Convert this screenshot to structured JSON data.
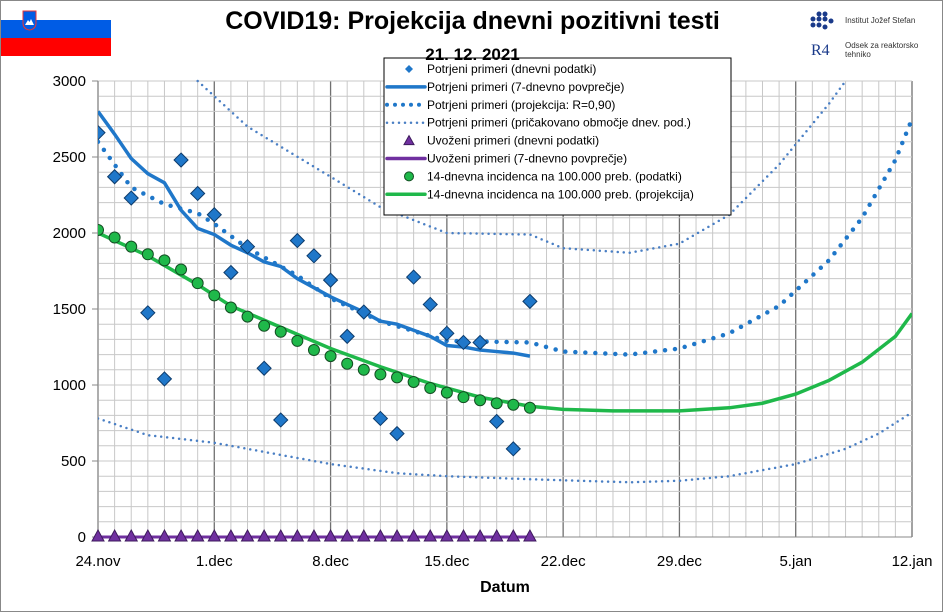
{
  "header": {
    "title": "COVID19: Projekcija dnevni pozitivni testi",
    "subtitle": "21. 12. 2021",
    "logo_line1": "Institut Jožef Stefan",
    "logo_line2": "Odsek za reaktorsko tehniko",
    "logo_mark": "R4"
  },
  "colors": {
    "blue": "#1f77c9",
    "darkblue": "#0b5fae",
    "purple": "#7030a0",
    "green": "#1fb84a",
    "flag_white": "#ffffff",
    "flag_blue": "#005ce5",
    "flag_red": "#ff0000"
  },
  "chart_data": {
    "type": "line",
    "xlabel": "Datum",
    "ylabel": "",
    "xlim": [
      "2021-11-24",
      "2022-01-12"
    ],
    "ylim": [
      0,
      3000
    ],
    "grid": true,
    "legend_position": "top-center",
    "x_ticks": [
      {
        "date": "2021-11-24",
        "label": "24.nov"
      },
      {
        "date": "2021-12-01",
        "label": "1.dec"
      },
      {
        "date": "2021-12-08",
        "label": "8.dec"
      },
      {
        "date": "2021-12-15",
        "label": "15.dec"
      },
      {
        "date": "2021-12-22",
        "label": "22.dec"
      },
      {
        "date": "2021-12-29",
        "label": "29.dec"
      },
      {
        "date": "2022-01-05",
        "label": "5.jan"
      },
      {
        "date": "2022-01-12",
        "label": "12.jan"
      }
    ],
    "y_ticks": [
      "0",
      "500",
      "1000",
      "1500",
      "2000",
      "2500",
      "3000"
    ],
    "dates": [
      "2021-11-24",
      "2021-11-25",
      "2021-11-26",
      "2021-11-27",
      "2021-11-28",
      "2021-11-29",
      "2021-11-30",
      "2021-12-01",
      "2021-12-02",
      "2021-12-03",
      "2021-12-04",
      "2021-12-05",
      "2021-12-06",
      "2021-12-07",
      "2021-12-08",
      "2021-12-09",
      "2021-12-10",
      "2021-12-11",
      "2021-12-12",
      "2021-12-13",
      "2021-12-14",
      "2021-12-15",
      "2021-12-16",
      "2021-12-17",
      "2021-12-18",
      "2021-12-19",
      "2021-12-20"
    ],
    "series": [
      {
        "name": "Potrjeni primeri (dnevni podatki)",
        "style": "diamond",
        "color": "#1f77c9",
        "values": [
          2660,
          2370,
          2230,
          1475,
          1040,
          2480,
          2260,
          2120,
          1740,
          1910,
          1110,
          770,
          1950,
          1850,
          1690,
          1320,
          1480,
          780,
          680,
          1710,
          1530,
          1340,
          1280,
          1280,
          760,
          580,
          1550
        ]
      },
      {
        "name": "Potrjeni primeri (7-dnevno povprečje)",
        "style": "line",
        "color": "#1f77c9",
        "values": [
          2800,
          2650,
          2490,
          2390,
          2330,
          2150,
          2030,
          1990,
          1920,
          1870,
          1810,
          1780,
          1700,
          1640,
          1580,
          1530,
          1480,
          1420,
          1400,
          1360,
          1320,
          1260,
          1250,
          1230,
          1220,
          1210,
          1190
        ]
      },
      {
        "name": "Potrjeni primeri (projekcija: R=0,90)",
        "style": "dots-large",
        "color": "#1f77c9",
        "points": [
          [
            "2021-11-24",
            2600
          ],
          [
            "2021-11-26",
            2300
          ],
          [
            "2021-11-28",
            2190
          ],
          [
            "2021-11-30",
            2130
          ],
          [
            "2021-12-01",
            2060
          ],
          [
            "2021-12-03",
            1900
          ],
          [
            "2021-12-06",
            1720
          ],
          [
            "2021-12-08",
            1570
          ],
          [
            "2021-12-11",
            1420
          ],
          [
            "2021-12-15",
            1290
          ],
          [
            "2021-12-20",
            1280
          ],
          [
            "2021-12-22",
            1220
          ],
          [
            "2021-12-26",
            1200
          ],
          [
            "2021-12-29",
            1240
          ],
          [
            "2022-01-01",
            1340
          ],
          [
            "2022-01-04",
            1520
          ],
          [
            "2022-01-07",
            1820
          ],
          [
            "2022-01-09",
            2100
          ],
          [
            "2022-01-11",
            2480
          ],
          [
            "2022-01-12",
            2750
          ]
        ]
      },
      {
        "name": "Potrjeni primeri (pričakovano območje dnev. pod.)",
        "style": "dots-small",
        "color": "#4a7fc4",
        "points_upper": [
          [
            "2021-11-30",
            3000
          ],
          [
            "2021-12-03",
            2700
          ],
          [
            "2021-12-08",
            2370
          ],
          [
            "2021-12-11",
            2170
          ],
          [
            "2021-12-15",
            2000
          ],
          [
            "2021-12-20",
            1990
          ],
          [
            "2021-12-22",
            1900
          ],
          [
            "2021-12-26",
            1870
          ],
          [
            "2021-12-29",
            1930
          ],
          [
            "2022-01-01",
            2120
          ],
          [
            "2022-01-04",
            2450
          ],
          [
            "2022-01-07",
            2850
          ],
          [
            "2022-01-08",
            3000
          ]
        ],
        "points_lower": [
          [
            "2021-11-24",
            780
          ],
          [
            "2021-11-27",
            670
          ],
          [
            "2021-12-01",
            620
          ],
          [
            "2021-12-04",
            560
          ],
          [
            "2021-12-08",
            480
          ],
          [
            "2021-12-12",
            420
          ],
          [
            "2021-12-15",
            400
          ],
          [
            "2021-12-20",
            380
          ],
          [
            "2021-12-26",
            360
          ],
          [
            "2021-12-29",
            370
          ],
          [
            "2022-01-01",
            400
          ],
          [
            "2022-01-05",
            480
          ],
          [
            "2022-01-08",
            580
          ],
          [
            "2022-01-10",
            680
          ],
          [
            "2022-01-12",
            820
          ]
        ]
      },
      {
        "name": "Uvoženi primeri (dnevni podatki)",
        "style": "triangle",
        "color": "#7030a0",
        "values": [
          0,
          0,
          0,
          0,
          0,
          0,
          0,
          0,
          0,
          0,
          0,
          0,
          0,
          0,
          0,
          0,
          0,
          0,
          0,
          0,
          0,
          0,
          0,
          0,
          0,
          0,
          0
        ]
      },
      {
        "name": "Uvoženi primeri (7-dnevno povprečje)",
        "style": "line",
        "color": "#7030a0",
        "values": [
          0,
          0,
          0,
          0,
          0,
          0,
          0,
          0,
          0,
          0,
          0,
          0,
          0,
          0,
          0,
          0,
          0,
          0,
          0,
          0,
          0,
          0,
          0,
          0,
          0,
          0,
          0
        ]
      },
      {
        "name": "14-dnevna incidenca na 100.000 preb. (podatki)",
        "style": "circle",
        "color": "#1fb84a",
        "values": [
          2020,
          1970,
          1910,
          1860,
          1820,
          1760,
          1670,
          1590,
          1510,
          1450,
          1390,
          1350,
          1290,
          1230,
          1190,
          1140,
          1100,
          1070,
          1050,
          1020,
          980,
          950,
          920,
          900,
          880,
          870,
          850
        ]
      },
      {
        "name": "14-dnevna incidenca na 100.000 preb. (projekcija)",
        "style": "line-thick",
        "color": "#1fb84a",
        "points": [
          [
            "2021-11-24",
            2000
          ],
          [
            "2021-11-27",
            1850
          ],
          [
            "2021-11-30",
            1660
          ],
          [
            "2021-12-02",
            1520
          ],
          [
            "2021-12-05",
            1380
          ],
          [
            "2021-12-08",
            1240
          ],
          [
            "2021-12-11",
            1120
          ],
          [
            "2021-12-14",
            1010
          ],
          [
            "2021-12-17",
            920
          ],
          [
            "2021-12-20",
            860
          ],
          [
            "2021-12-22",
            840
          ],
          [
            "2021-12-25",
            830
          ],
          [
            "2021-12-29",
            830
          ],
          [
            "2022-01-01",
            850
          ],
          [
            "2022-01-03",
            880
          ],
          [
            "2022-01-05",
            940
          ],
          [
            "2022-01-07",
            1030
          ],
          [
            "2022-01-09",
            1150
          ],
          [
            "2022-01-11",
            1320
          ],
          [
            "2022-01-12",
            1470
          ]
        ]
      }
    ]
  }
}
